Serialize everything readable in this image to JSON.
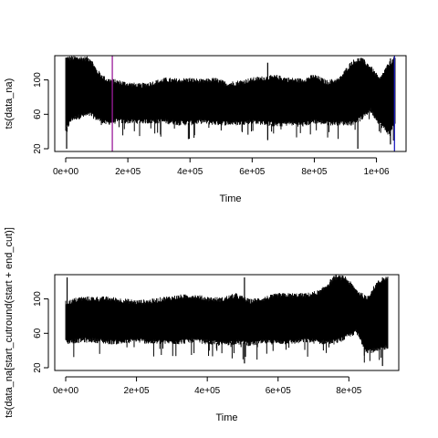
{
  "chart_data": [
    {
      "type": "line",
      "xlabel": "Time",
      "ylabel": "ts(data_na)",
      "xlim": [
        0,
        1060000
      ],
      "ylim": [
        20,
        125
      ],
      "x_ticks": [
        0,
        200000,
        400000,
        600000,
        800000,
        1000000
      ],
      "x_tick_labels": [
        "0e+00",
        "2e+05",
        "4e+05",
        "6e+05",
        "8e+05",
        "1e+06"
      ],
      "y_ticks": [
        20,
        60,
        100
      ],
      "y_tick_labels": [
        "20",
        "60",
        "100"
      ],
      "color": "#000000",
      "series": [
        {
          "x": [
            0,
            20000,
            50000,
            80000,
            100000,
            130000,
            160000,
            200000,
            240000,
            280000,
            320000,
            360000,
            400000,
            440000,
            480000,
            520000,
            560000,
            600000,
            640000,
            680000,
            720000,
            760000,
            800000,
            840000,
            880000,
            920000,
            950000,
            980000,
            1010000,
            1040000,
            1060000
          ],
          "upper": [
            125,
            125,
            125,
            124,
            110,
            100,
            98,
            95,
            93,
            96,
            100,
            99,
            100,
            98,
            100,
            95,
            97,
            100,
            102,
            103,
            100,
            99,
            104,
            97,
            100,
            120,
            124,
            115,
            100,
            118,
            125
          ],
          "lower": [
            42,
            55,
            58,
            60,
            55,
            50,
            52,
            52,
            52,
            52,
            52,
            50,
            50,
            52,
            50,
            50,
            50,
            52,
            50,
            48,
            50,
            48,
            52,
            50,
            50,
            50,
            55,
            65,
            50,
            38,
            50
          ]
        }
      ],
      "spikes": [
        {
          "x": 3000,
          "y_min": 20,
          "y_max": 125
        },
        {
          "x": 940000,
          "y_min": 20,
          "y_max": 125
        },
        {
          "x": 1045000,
          "y_min": 25,
          "y_max": 125
        },
        {
          "x": 650000,
          "y_min": 30,
          "y_max": 120
        }
      ],
      "vlines": [
        {
          "x": 150000,
          "color": "#9b1d9b"
        },
        {
          "x": 1058000,
          "color": "#1f1fbf"
        }
      ]
    },
    {
      "type": "line",
      "xlabel": "Time",
      "ylabel": "ts(data_na[start_cutround(start + end_cut)]",
      "xlim": [
        0,
        910000
      ],
      "ylim": [
        20,
        125
      ],
      "x_ticks": [
        0,
        200000,
        400000,
        600000,
        800000
      ],
      "x_tick_labels": [
        "0e+00",
        "2e+05",
        "4e+05",
        "6e+05",
        "8e+05"
      ],
      "y_ticks": [
        20,
        60,
        100
      ],
      "y_tick_labels": [
        "20",
        "60",
        "100"
      ],
      "color": "#000000",
      "series": [
        {
          "x": [
            0,
            40000,
            80000,
            120000,
            160000,
            200000,
            240000,
            280000,
            320000,
            360000,
            400000,
            440000,
            480000,
            520000,
            560000,
            600000,
            640000,
            680000,
            720000,
            760000,
            790000,
            820000,
            850000,
            880000,
            910000
          ],
          "upper": [
            95,
            100,
            100,
            100,
            98,
            96,
            97,
            100,
            102,
            103,
            100,
            99,
            104,
            97,
            100,
            104,
            104,
            104,
            108,
            125,
            124,
            110,
            100,
            118,
            125
          ],
          "lower": [
            50,
            52,
            52,
            50,
            50,
            52,
            50,
            50,
            50,
            52,
            50,
            48,
            50,
            48,
            50,
            50,
            50,
            52,
            50,
            50,
            55,
            62,
            40,
            40,
            45
          ]
        }
      ],
      "spikes": [
        {
          "x": 4000,
          "y_min": 50,
          "y_max": 125
        },
        {
          "x": 505000,
          "y_min": 25,
          "y_max": 125
        },
        {
          "x": 895000,
          "y_min": 22,
          "y_max": 125
        }
      ],
      "vlines": []
    }
  ]
}
